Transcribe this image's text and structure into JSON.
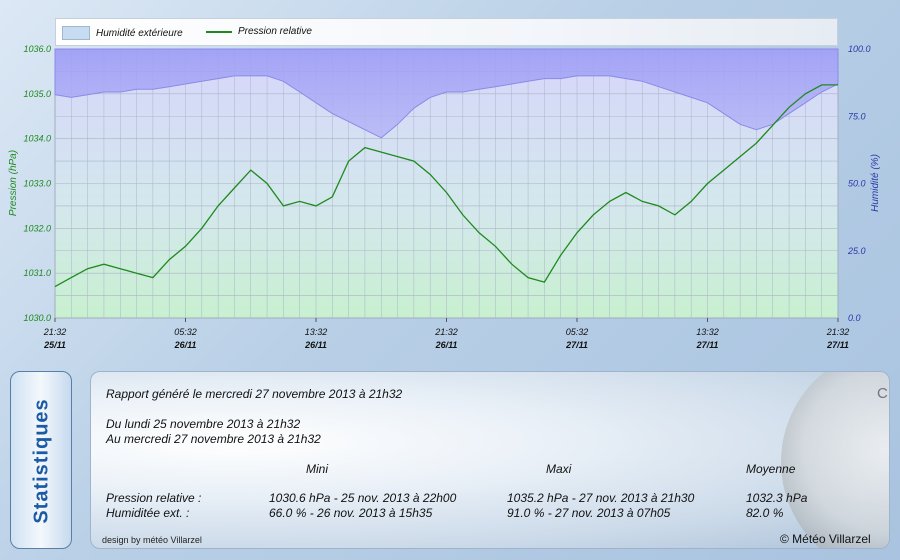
{
  "chart_data": {
    "type": "line",
    "legend": [
      "Humidité extérieure",
      "Pression relative"
    ],
    "left_axis": {
      "label": "Pression (hPa)",
      "min": 1030.0,
      "max": 1036.0,
      "ticks": [
        "1030.0",
        "1031.0",
        "1032.0",
        "1033.0",
        "1034.0",
        "1035.0",
        "1036.0"
      ],
      "color": "#1e8a1e"
    },
    "right_axis": {
      "label": "Humidité (%)",
      "min": 0,
      "max": 100,
      "ticks": [
        "0.0",
        "25.0",
        "50.0",
        "75.0",
        "100.0"
      ],
      "color": "#2a3aa8"
    },
    "x_ticks": [
      [
        "21:32",
        "25/11"
      ],
      [
        "05:32",
        "26/11"
      ],
      [
        "13:32",
        "26/11"
      ],
      [
        "21:32",
        "26/11"
      ],
      [
        "05:32",
        "27/11"
      ],
      [
        "13:32",
        "27/11"
      ],
      [
        "21:32",
        "27/11"
      ]
    ],
    "grid": true,
    "series": [
      {
        "name": "Humidité extérieure",
        "type": "area",
        "axis": "right",
        "color": "#8f8ff2",
        "x": [
          0,
          1,
          2,
          3,
          4,
          5,
          6,
          7,
          8,
          9,
          10,
          11,
          12,
          13,
          14,
          15,
          16,
          17,
          18,
          19,
          20,
          21,
          22,
          23,
          24,
          25,
          26,
          27,
          28,
          29,
          30,
          31,
          32,
          33,
          34,
          35,
          36,
          37,
          38,
          39,
          40,
          41,
          42,
          43,
          44,
          45,
          46,
          47,
          48
        ],
        "values": [
          83,
          82,
          83,
          84,
          84,
          85,
          85,
          86,
          87,
          88,
          89,
          90,
          90,
          90,
          88,
          84,
          80,
          76,
          73,
          70,
          67,
          72,
          78,
          82,
          84,
          84,
          85,
          86,
          87,
          88,
          89,
          89,
          90,
          90,
          90,
          89,
          88,
          86,
          84,
          82,
          80,
          76,
          72,
          70,
          72,
          76,
          80,
          84,
          87
        ]
      },
      {
        "name": "Pression relative",
        "type": "line",
        "axis": "left",
        "color": "#1e8a1e",
        "x": [
          0,
          1,
          2,
          3,
          4,
          5,
          6,
          7,
          8,
          9,
          10,
          11,
          12,
          13,
          14,
          15,
          16,
          17,
          18,
          19,
          20,
          21,
          22,
          23,
          24,
          25,
          26,
          27,
          28,
          29,
          30,
          31,
          32,
          33,
          34,
          35,
          36,
          37,
          38,
          39,
          40,
          41,
          42,
          43,
          44,
          45,
          46,
          47,
          48
        ],
        "values": [
          1030.7,
          1030.9,
          1031.1,
          1031.2,
          1031.1,
          1031.0,
          1030.9,
          1031.3,
          1031.6,
          1032.0,
          1032.5,
          1032.9,
          1033.3,
          1033.0,
          1032.5,
          1032.6,
          1032.5,
          1032.7,
          1033.5,
          1033.8,
          1033.7,
          1033.6,
          1033.5,
          1033.2,
          1032.8,
          1032.3,
          1031.9,
          1031.6,
          1031.2,
          1030.9,
          1030.8,
          1031.4,
          1031.9,
          1032.3,
          1032.6,
          1032.8,
          1032.6,
          1032.5,
          1032.3,
          1032.6,
          1033.0,
          1033.3,
          1033.6,
          1033.9,
          1034.3,
          1034.7,
          1035.0,
          1035.2,
          1035.2
        ]
      }
    ]
  },
  "stats": {
    "tab_label": "Statistiques",
    "report_line": "Rapport généré le mercredi 27 novembre 2013 à 21h32",
    "from_line": "Du lundi 25 novembre 2013 à 21h32",
    "to_line": "Au mercredi 27 novembre 2013 à 21h32",
    "headers": {
      "mini": "Mini",
      "maxi": "Maxi",
      "avg": "Moyenne"
    },
    "rows": [
      {
        "label": "Pression relative :",
        "mini": "1030.6 hPa - 25 nov. 2013 à 22h00",
        "maxi": "1035.2 hPa - 27 nov. 2013 à 21h30",
        "avg": "1032.3 hPa"
      },
      {
        "label": "Humiditée ext. :",
        "mini": "66.0 % - 26 nov. 2013 à 15h35",
        "maxi": "91.0 % - 27 nov. 2013 à 07h05",
        "avg": "82.0 %"
      }
    ],
    "design_credit": "design by météo Villarzel",
    "copyright": "© Météo Villarzel",
    "gauge_word": "CHANGE"
  }
}
